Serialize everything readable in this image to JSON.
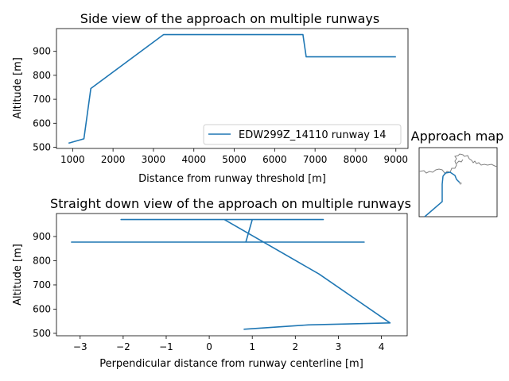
{
  "chart_data": [
    {
      "type": "line",
      "title": "Side view of the approach on multiple runways",
      "xlabel": "Distance from runway threshold [m]",
      "ylabel": "Altitude [m]",
      "xlim": [
        600,
        9300
      ],
      "ylim": [
        495,
        995
      ],
      "xticks": [
        1000,
        2000,
        3000,
        4000,
        5000,
        6000,
        7000,
        8000,
        9000
      ],
      "xtick_labels": [
        "1000",
        "2000",
        "3000",
        "4000",
        "5000",
        "6000",
        "7000",
        "8000",
        "9000"
      ],
      "yticks": [
        500,
        600,
        700,
        800,
        900
      ],
      "ytick_labels": [
        "500",
        "600",
        "700",
        "800",
        "900"
      ],
      "legend": "lower-right",
      "grid": false,
      "series": [
        {
          "name": "EDW299Z_14110 runway 14",
          "color": "#1f77b4",
          "x": [
            900,
            1280,
            1450,
            3250,
            6700,
            6780,
            9000
          ],
          "y": [
            517,
            535,
            745,
            970,
            970,
            877,
            877
          ]
        }
      ]
    },
    {
      "type": "line",
      "title": "Straight down view of the approach on multiple runways",
      "xlabel": "Perpendicular distance from runway centerline [m]",
      "ylabel": "Altitude [m]",
      "xlim": [
        -3.55,
        4.6
      ],
      "ylim": [
        490,
        995
      ],
      "xticks": [
        -3,
        -2,
        -1,
        0,
        1,
        2,
        3,
        4
      ],
      "xtick_labels": [
        "−3",
        "−2",
        "−1",
        "0",
        "1",
        "2",
        "3",
        "4"
      ],
      "yticks": [
        500,
        600,
        700,
        800,
        900
      ],
      "ytick_labels": [
        "500",
        "600",
        "700",
        "800",
        "900"
      ],
      "grid": false,
      "series": [
        {
          "color": "#1f77b4",
          "x": [
            0.8,
            2.3,
            4.2,
            2.55,
            0.35,
            -2.05,
            2.65,
            1.0,
            0.85,
            3.6,
            -3.2,
            -0.5
          ],
          "y": [
            517,
            535,
            543,
            745,
            970,
            970,
            970,
            970,
            877,
            877,
            877,
            877
          ]
        }
      ]
    },
    {
      "type": "map",
      "title": "Approach map"
    }
  ]
}
